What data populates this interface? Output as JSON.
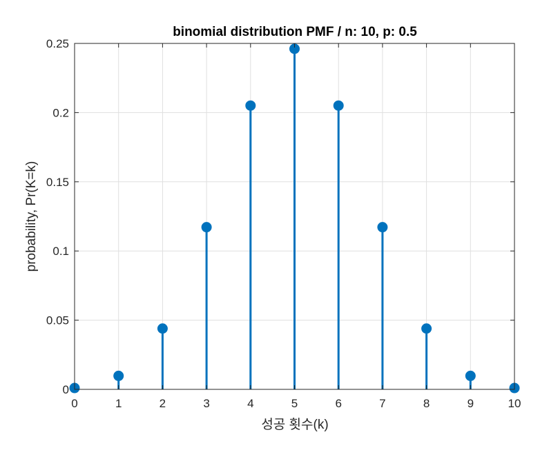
{
  "chart_data": {
    "type": "stem",
    "title": "binomial distribution PMF / n: 10, p: 0.5",
    "xlabel": "성공 횟수(k)",
    "ylabel": "probability, Pr(K=k)",
    "x": [
      0,
      1,
      2,
      3,
      4,
      5,
      6,
      7,
      8,
      9,
      10
    ],
    "y": [
      0.000977,
      0.009766,
      0.043945,
      0.117188,
      0.205078,
      0.246094,
      0.205078,
      0.117188,
      0.043945,
      0.009766,
      0.000977
    ],
    "xlim": [
      0,
      10
    ],
    "ylim": [
      0,
      0.25
    ],
    "xticks": [
      "0",
      "1",
      "2",
      "3",
      "4",
      "5",
      "6",
      "7",
      "8",
      "9",
      "10"
    ],
    "yticks": [
      "0",
      "0.05",
      "0.1",
      "0.15",
      "0.2",
      "0.25"
    ],
    "yticks_values": [
      0,
      0.05,
      0.1,
      0.15,
      0.2,
      0.25
    ],
    "grid": true,
    "series_color": "#0072BD"
  }
}
